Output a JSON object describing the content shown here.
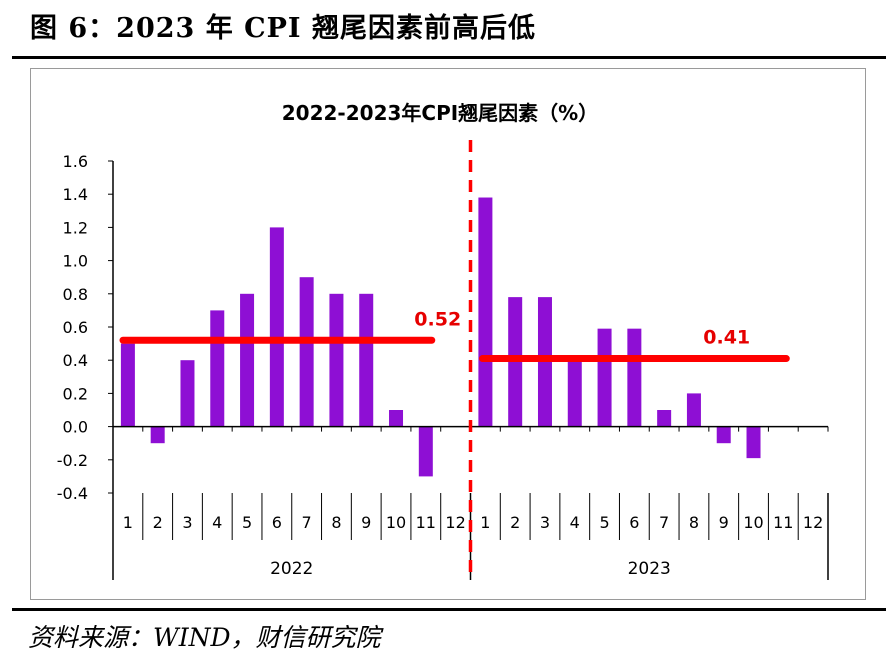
{
  "page": {
    "figure_title": "图 6：2023 年 CPI 翘尾因素前高后低",
    "source": "资料来源：WIND，财信研究院"
  },
  "chart_data": {
    "type": "bar",
    "title": "2022-2023年CPI翘尾因素（%）",
    "xlabel": "",
    "ylabel": "",
    "ylim": [
      -0.4,
      1.6
    ],
    "yticks": [
      "-0.4",
      "-0.2",
      "0.0",
      "0.2",
      "0.4",
      "0.6",
      "0.8",
      "1.0",
      "1.2",
      "1.4",
      "1.6"
    ],
    "grid": false,
    "legend": "none",
    "bar_color": "#8e0fd4",
    "annotation_color": "#ff0000",
    "groups": [
      {
        "year": "2022",
        "categories": [
          "1",
          "2",
          "3",
          "4",
          "5",
          "6",
          "7",
          "8",
          "9",
          "10",
          "11",
          "12"
        ],
        "values": [
          0.5,
          -0.1,
          0.4,
          0.7,
          0.8,
          1.2,
          0.9,
          0.8,
          0.8,
          0.1,
          -0.3,
          null
        ],
        "average": 0.52,
        "average_label": "0.52"
      },
      {
        "year": "2023",
        "categories": [
          "1",
          "2",
          "3",
          "4",
          "5",
          "6",
          "7",
          "8",
          "9",
          "10",
          "11",
          "12"
        ],
        "values": [
          1.38,
          0.78,
          0.78,
          0.4,
          0.59,
          0.59,
          0.1,
          0.2,
          -0.1,
          -0.19,
          null,
          null
        ],
        "average": 0.41,
        "average_label": "0.41"
      }
    ]
  }
}
